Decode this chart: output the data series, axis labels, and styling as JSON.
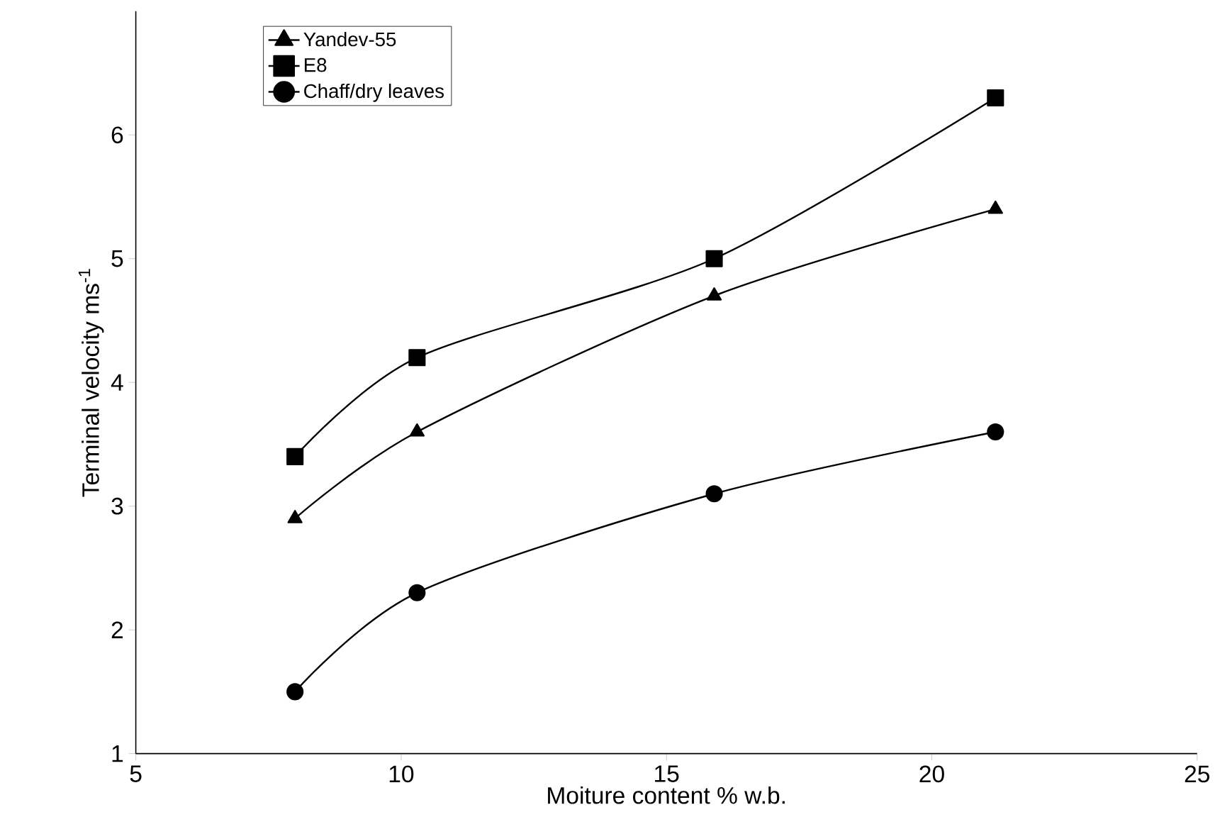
{
  "chart_data": {
    "type": "line",
    "xlabel": "Moiture content % w.b.",
    "ylabel": "Terminal velocity ms$^{-1}$",
    "xlim": [
      5,
      25
    ],
    "xticks": [
      5,
      10,
      15,
      20,
      25
    ],
    "ylim": [
      1,
      7
    ],
    "yticks": [
      1,
      2,
      3,
      4,
      5,
      6
    ],
    "legend": "top left",
    "grid": false,
    "series": [
      {
        "name": "Yandev-55",
        "color": "#000000",
        "marker": "triangle",
        "x": [
          8,
          10.3,
          15.9,
          21.2
        ],
        "values": [
          2.9,
          3.6,
          4.7,
          5.4
        ]
      },
      {
        "name": "E8",
        "color": "#000000",
        "marker": "square",
        "x": [
          8,
          10.3,
          15.9,
          21.2
        ],
        "values": [
          3.4,
          4.2,
          5.0,
          6.3
        ]
      },
      {
        "name": "Chaff/dry leaves",
        "color": "#000000",
        "marker": "circle",
        "x": [
          8,
          10.3,
          15.9,
          21.2
        ],
        "values": [
          1.5,
          2.3,
          3.1,
          3.6
        ]
      }
    ]
  }
}
